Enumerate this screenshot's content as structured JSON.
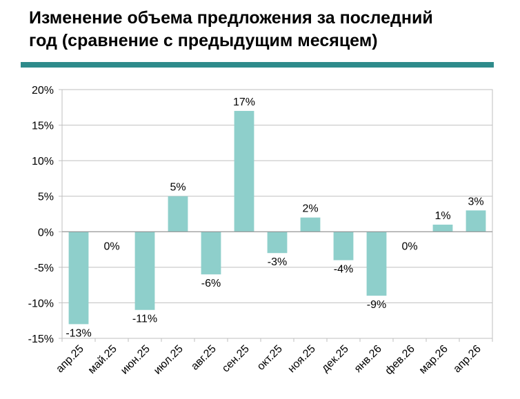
{
  "title_line1": "Изменение объема предложения за последний",
  "title_line2": "год (сравнение с предыдущим месяцем)",
  "colors": {
    "bar": "#8ecfcb",
    "rule": "#2e8b8b",
    "grid": "#bfbfbf"
  },
  "chart_data": {
    "type": "bar",
    "title": "Изменение объема предложения за последний год (сравнение с предыдущим месяцем)",
    "categories": [
      "апр.25",
      "май.25",
      "июн.25",
      "июл.25",
      "авг.25",
      "сен.25",
      "окт.25",
      "ноя.25",
      "дек.25",
      "янв.26",
      "фев.26",
      "мар.26",
      "апр.26"
    ],
    "values": [
      -13,
      0,
      -11,
      5,
      -6,
      17,
      -3,
      2,
      -4,
      -9,
      0,
      1,
      3
    ],
    "data_labels": [
      "-13%",
      "0%",
      "-11%",
      "5%",
      "-6%",
      "17%",
      "-3%",
      "2%",
      "-4%",
      "-9%",
      "0%",
      "1%",
      "3%"
    ],
    "y_ticks": [
      20,
      15,
      10,
      5,
      0,
      -5,
      -10,
      -15
    ],
    "y_tick_labels": [
      "20%",
      "15%",
      "10%",
      "5%",
      "0%",
      "-5%",
      "-10%",
      "-15%"
    ],
    "ylim": [
      -15,
      20
    ],
    "grid": true,
    "xlabel": "",
    "ylabel": ""
  }
}
